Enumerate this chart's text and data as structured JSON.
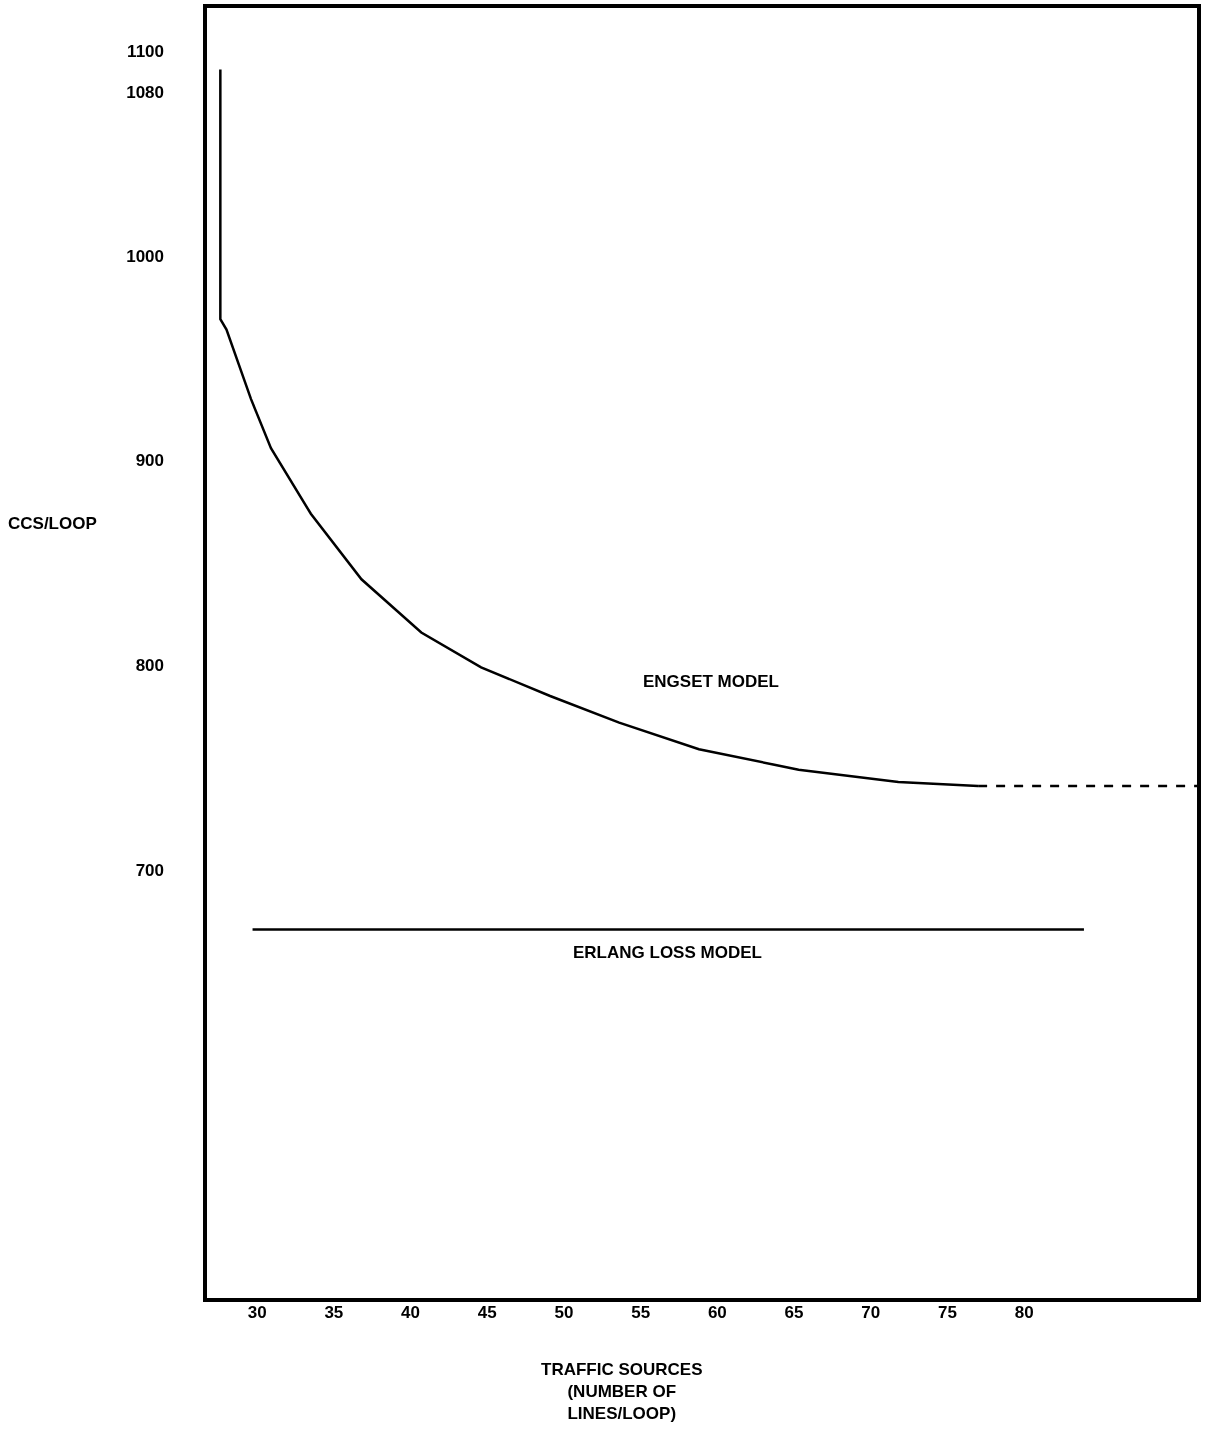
{
  "chart_data": {
    "type": "line",
    "xlabel": "TRAFFIC SOURCES\n(NUMBER OF\nLINES/LOOP)",
    "ylabel": "CCS/LOOP",
    "xlim": [
      26.6,
      91.4
    ],
    "ylim": [
      490,
      1122
    ],
    "xticks": [
      30,
      35,
      40,
      45,
      50,
      55,
      60,
      65,
      70,
      75,
      80
    ],
    "yticks": [
      700,
      800,
      900,
      1000,
      1080,
      1100
    ],
    "grid": false,
    "marker": "none",
    "series": [
      {
        "color": "#000000",
        "line_style": "solid",
        "x": [
          27.6,
          27.6,
          28.0,
          29.6,
          30.9,
          33.5,
          36.8,
          40.7,
          44.6,
          49.1,
          53.6,
          58.8,
          65.3,
          71.8,
          77.0
        ],
        "values": [
          1091,
          969,
          964,
          930,
          906,
          874,
          842,
          816,
          799,
          785,
          772,
          759,
          749,
          743,
          741
        ]
      },
      {
        "color": "#000000",
        "line_style": "dashed",
        "x": [
          77.0,
          91.3
        ],
        "values": [
          741,
          741
        ]
      },
      {
        "color": "#000000",
        "line_style": "solid",
        "x": [
          29.7,
          83.9
        ],
        "values": [
          671,
          671
        ]
      }
    ],
    "annotations": [
      "ENGSET MODEL",
      "ERLANG LOSS MODEL"
    ]
  }
}
